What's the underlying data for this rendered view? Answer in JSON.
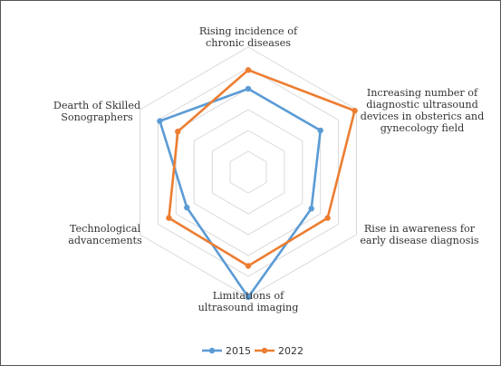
{
  "chart_data": {
    "type": "radar",
    "title": "",
    "categories": [
      [
        "Rising incidence of",
        "chronic diseases"
      ],
      [
        "Increasing number of",
        "diagnostic ultrasound",
        "devices in obsterics and",
        "gynecology field"
      ],
      [
        "Rise in awareness for",
        "early disease diagnosis"
      ],
      [
        "Limitations of",
        "ultrasound imaging"
      ],
      [
        "Technological",
        "advancements"
      ],
      [
        "Dearth of Skilled",
        "Sonographers"
      ]
    ],
    "rmax": 6,
    "grid_rings": 6,
    "grid": true,
    "legend_position": "bottom",
    "series": [
      {
        "name": "2015",
        "color": "#5B9BD5",
        "values": [
          4,
          4,
          3.5,
          6,
          3.4,
          4.9
        ]
      },
      {
        "name": "2022",
        "color": "#ED7D31",
        "values": [
          4.9,
          5.9,
          4.4,
          4.5,
          4.4,
          3.9
        ]
      }
    ]
  }
}
